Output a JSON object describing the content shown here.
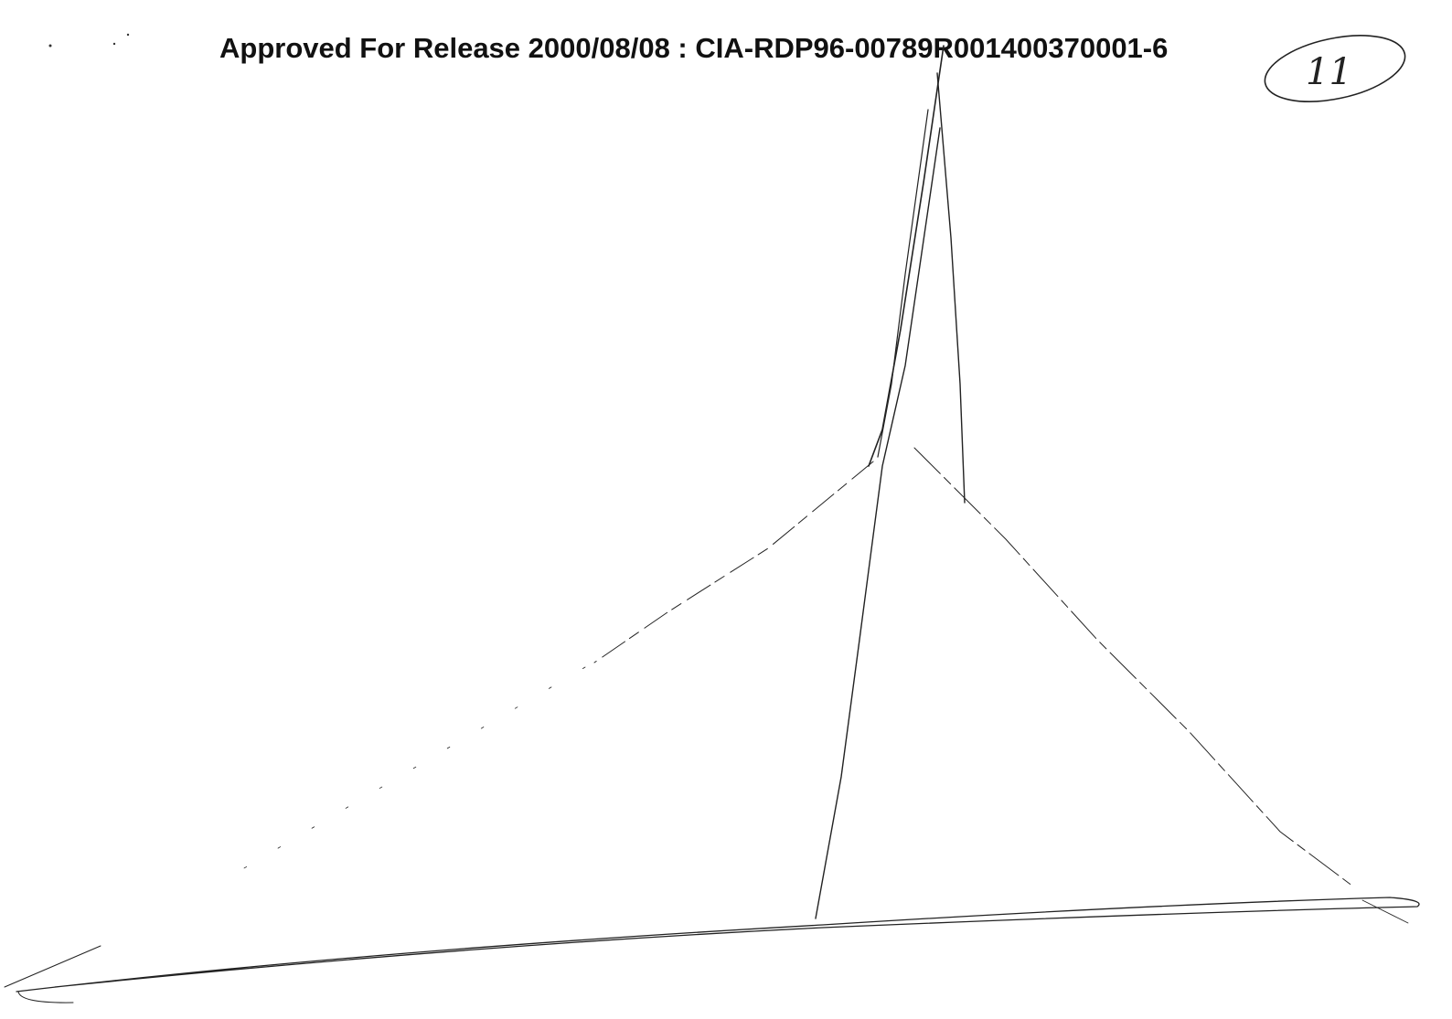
{
  "header": {
    "release_line": "Approved For Release 2000/08/08 : CIA-RDP96-00789R001400370001-6"
  },
  "page_mark": "11"
}
